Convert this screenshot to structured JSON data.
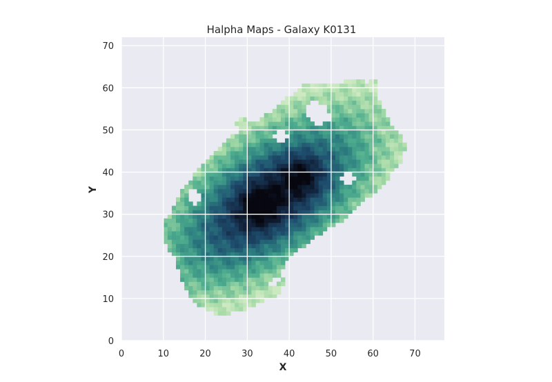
{
  "chart_data": {
    "type": "heatmap",
    "title": "Halpha Maps - Galaxy K0131",
    "xlabel": "X",
    "ylabel": "Y",
    "xlim": [
      0,
      77
    ],
    "ylim": [
      0,
      72
    ],
    "x_ticks": [
      0,
      10,
      20,
      30,
      40,
      50,
      60,
      70
    ],
    "y_ticks": [
      0,
      10,
      20,
      30,
      40,
      50,
      60,
      70
    ],
    "x_tick_labels": [
      "0",
      "10",
      "20",
      "30",
      "40",
      "50",
      "60",
      "70"
    ],
    "y_tick_labels": [
      "0",
      "10",
      "20",
      "30",
      "40",
      "50",
      "60",
      "70"
    ],
    "grid": true,
    "colormap": [
      "#eef5d9",
      "#a8dba8",
      "#4fae8e",
      "#2d7f80",
      "#1f4f6f",
      "#142a46",
      "#070710"
    ],
    "plot_background": "#eaeaf2",
    "grid_color": "#ffffff",
    "galaxy_structure": {
      "center": [
        35.5,
        33.5
      ],
      "major_axis_angle_deg": 36,
      "semi_major": 34,
      "semi_minor": 17,
      "peak_positions": [
        [
          33,
          32
        ],
        [
          43,
          39
        ]
      ],
      "outer_boundary_polygon": [
        [
          9.5,
          25
        ],
        [
          11,
          22
        ],
        [
          13,
          19
        ],
        [
          14,
          15
        ],
        [
          16,
          11
        ],
        [
          19,
          8
        ],
        [
          22,
          6.5
        ],
        [
          26,
          6.5
        ],
        [
          30,
          7.5
        ],
        [
          33,
          9
        ],
        [
          36,
          10
        ],
        [
          38,
          11.5
        ],
        [
          39,
          14
        ],
        [
          38,
          16.5
        ],
        [
          40,
          20
        ],
        [
          43,
          22
        ],
        [
          47,
          25
        ],
        [
          51,
          27.5
        ],
        [
          54,
          29
        ],
        [
          56,
          32
        ],
        [
          59,
          34
        ],
        [
          62,
          36
        ],
        [
          64,
          39
        ],
        [
          67,
          43
        ],
        [
          68,
          46
        ],
        [
          67,
          49
        ],
        [
          64,
          52
        ],
        [
          62,
          56
        ],
        [
          60,
          61
        ],
        [
          56,
          62
        ],
        [
          50,
          61
        ],
        [
          44,
          61
        ],
        [
          40,
          58
        ],
        [
          37,
          55
        ],
        [
          32,
          52
        ],
        [
          27,
          49
        ],
        [
          23,
          46
        ],
        [
          20,
          42
        ],
        [
          17,
          39
        ],
        [
          14,
          35
        ],
        [
          12,
          31
        ],
        [
          10,
          28
        ]
      ],
      "holes": [
        [
          [
            44,
            53
          ],
          [
            47,
            51
          ],
          [
            50,
            52
          ],
          [
            49,
            56
          ],
          [
            46,
            57
          ],
          [
            44,
            55.5
          ]
        ],
        [
          [
            36,
            48
          ],
          [
            38,
            47
          ],
          [
            40,
            48.5
          ],
          [
            39,
            50.5
          ],
          [
            37,
            50.5
          ]
        ],
        [
          [
            52,
            38
          ],
          [
            54.5,
            36.5
          ],
          [
            56,
            38
          ],
          [
            55,
            40.5
          ],
          [
            53,
            40.5
          ]
        ],
        [
          [
            16.5,
            33
          ],
          [
            18,
            32
          ],
          [
            19,
            34
          ],
          [
            18,
            36
          ],
          [
            16.5,
            35.5
          ]
        ],
        [
          [
            35,
            13
          ],
          [
            37,
            12.5
          ],
          [
            38,
            14.5
          ],
          [
            36.5,
            15.5
          ]
        ]
      ],
      "detached_clumps": [
        [
          52.5,
          57.5
        ],
        [
          60,
          61
        ],
        [
          41,
          57
        ],
        [
          29,
          51.5
        ],
        [
          35,
          49.5
        ],
        [
          58,
          35
        ],
        [
          25,
          12
        ],
        [
          31,
          18
        ]
      ]
    }
  }
}
